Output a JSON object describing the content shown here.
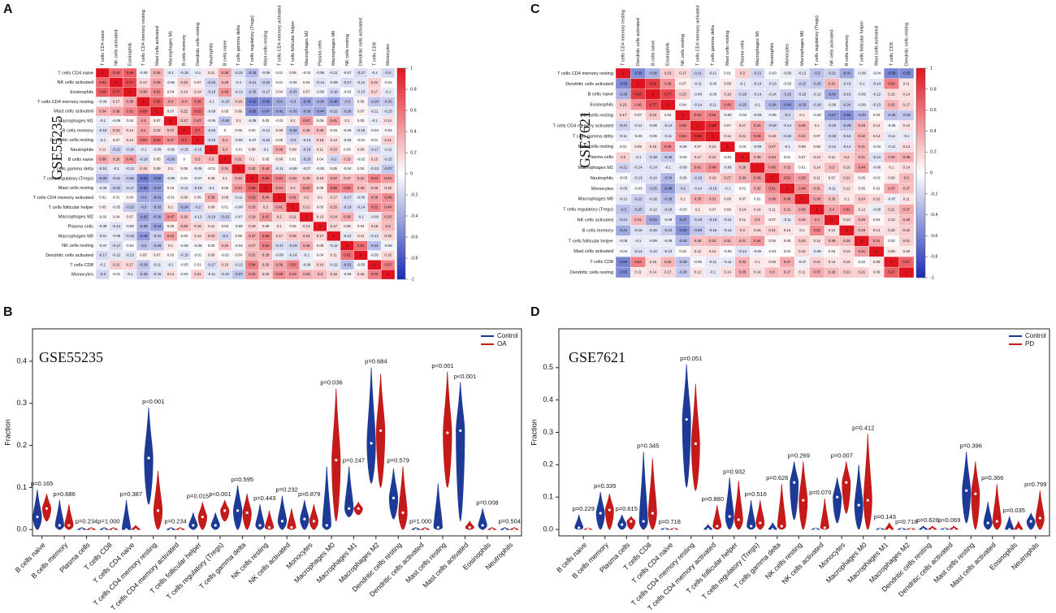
{
  "chart_data": [
    {
      "type": "heatmap",
      "panel_label": "A",
      "dataset": "GSE55235",
      "rows": [
        "T cells CD4 naive",
        "NK cells activated",
        "Eosinophils",
        "T cells CD4 memory resting",
        "Mast cells activated",
        "Macrophages M1",
        "B cells memory",
        "Dendritic cells resting",
        "Neutrophils",
        "B cells naive",
        "T cells gamma delta",
        "T cells regulatory (Tregs)",
        "Mast cells resting",
        "T cells CD4 memory activated",
        "T cells follicular helper",
        "Macrophages M2",
        "Plasma cells",
        "Macrophages M0",
        "NK cells resting",
        "Dendritic cells activated",
        "T cells CD8",
        "Monocytes"
      ],
      "values": [
        [
          1,
          0.63,
          0.69,
          -0.06,
          0.34,
          -0.1,
          -0.15,
          -0.1,
          0.11,
          0.38,
          -0.15,
          -0.33,
          -0.09,
          0.01,
          0.05,
          -0.02,
          -0.08,
          -0.11,
          -0.07,
          -0.17,
          -0.1,
          -0.2
        ],
        [
          1,
          0.77,
          0.17,
          0.39,
          -0.05,
          0.23,
          0.07,
          -0.22,
          0.28,
          -0.1,
          -0.21,
          -0.23,
          0.01,
          -0.05,
          0.04,
          -0.14,
          -0.09,
          -0.17,
          -0.12,
          0.21,
          -0.01
        ],
        [
          1,
          0.38,
          0.51,
          0.04,
          0.14,
          0.14,
          -0.16,
          0.45,
          -0.13,
          -0.25,
          -0.17,
          0.04,
          -0.25,
          0.07,
          -0.06,
          -0.18,
          -0.02,
          -0.13,
          0.17,
          -0.1
        ],
        [
          1,
          0.69,
          0.4,
          0.4,
          0.56,
          -0.1,
          -0.18,
          0.19,
          -0.62,
          -0.55,
          -0.4,
          -0.3,
          -0.45,
          -0.36,
          -0.48,
          -0.3,
          0.05,
          -0.28,
          -0.25
        ],
        [
          1,
          0.07,
          0.22,
          0.63,
          -0.09,
          0.05,
          0.09,
          -0.55,
          -0.47,
          -0.41,
          -0.33,
          -0.36,
          -0.44,
          -0.22,
          -0.29,
          0.07,
          -0.11,
          -0.15
        ],
        [
          1,
          0.27,
          0.47,
          -0.06,
          -0.29,
          0.1,
          -0.09,
          0.03,
          -0.01,
          0.1,
          0.47,
          0.06,
          0.41,
          0.1,
          0.03,
          -0.1,
          0.14
        ],
        [
          1,
          0.7,
          -0.15,
          0,
          0.05,
          0.02,
          -0.12,
          0.09,
          -0.34,
          0.26,
          0.29,
          0.03,
          -0.05,
          -0.15,
          -0.03,
          -0.04
        ],
        [
          1,
          -0.15,
          0.3,
          -0.09,
          -0.07,
          -0.16,
          0.05,
          -0.2,
          -0.13,
          0.18,
          0.13,
          -0.05,
          -0.01,
          0.01,
          0.21
        ],
        [
          1,
          0.3,
          -0.01,
          0.08,
          -0.1,
          0.36,
          0.09,
          -0.19,
          0.11,
          0.23,
          0.03,
          0.09,
          -0.17,
          -0.11
        ],
        [
          1,
          0.31,
          0.1,
          0.05,
          0.09,
          0.01,
          -0.23,
          0.04,
          -0.2,
          0.25,
          -0.02,
          0.15,
          -0.15
        ],
        [
          1,
          0.32,
          0.43,
          -0.11,
          -0.08,
          -0.07,
          -0.05,
          0.05,
          -0.04,
          0.04,
          -0.13,
          -0.27
        ],
        [
          1,
          0.69,
          0.52,
          0.33,
          0.29,
          0.18,
          0.37,
          0.27,
          0.31,
          0.54,
          0.44
        ],
        [
          1,
          0.44,
          0.2,
          0.47,
          0.08,
          0.55,
          0.54,
          0.28,
          0.25,
          0.18
        ],
        [
          1,
          0.41,
          0.2,
          0.1,
          0.17,
          -0.17,
          -0.09,
          0.39,
          0.48
        ],
        [
          1,
          0.21,
          0.05,
          0.25,
          -0.19,
          -0.14,
          0.52,
          0.44
        ],
        [
          1,
          0.13,
          0.24,
          0.36,
          -0.1,
          -0.09,
          0.33
        ],
        [
          1,
          0.17,
          0.08,
          0.04,
          0.16,
          0.3
        ],
        [
          1,
          -0.12,
          0.11,
          -0.12,
          0.19
        ],
        [
          1,
          0.61,
          -0.31,
          -0.06
        ],
        [
          1,
          -0.05,
          0.16
        ],
        [
          1,
          0.53
        ],
        [
          1
        ]
      ],
      "zlim": [
        -1,
        1
      ],
      "zticks": [
        1,
        0.8,
        0.6,
        0.4,
        0.2,
        0,
        -0.2,
        -0.4,
        -0.6,
        -0.8,
        -1
      ],
      "colors": [
        "#1a2db5",
        "#ffffff",
        "#e0141e"
      ]
    },
    {
      "type": "violin",
      "panel_label": "B",
      "dataset": "GSE55235",
      "y_label": "Fraction",
      "categories": [
        "B cells naive",
        "B cells memory",
        "Plasma cells",
        "T cells CD8",
        "T cells CD4 naive",
        "T cells CD4 memory resting",
        "T cells CD4 memory activated",
        "T cells follicular helper",
        "T cells regulatory (Tregs)",
        "T cells gamma delta",
        "NK cells resting",
        "NK cells activated",
        "Monocytes",
        "Macrophages M0",
        "Macrophages M1",
        "Macrophages M2",
        "Dendritic cells resting",
        "Dendritic cells activated",
        "Mast cells resting",
        "Mast cells activated",
        "Eosinophils",
        "Neutrophils"
      ],
      "p_values": [
        "p=0.165",
        "p=0.686",
        "p=0.234",
        "p=1.000",
        "p=0.387",
        "p<0.001",
        "p=0.234",
        "p=0.015",
        "p<0.001",
        "p=0.595",
        "p=0.443",
        "p=0.232",
        "p=0.879",
        "p=0.036",
        "p=0.247",
        "p=0.684",
        "p=0.579",
        "p=1.000",
        "p<0.001",
        "p<0.001",
        "p=0.008",
        "p=0.504"
      ],
      "series": [
        {
          "name": "Control",
          "color": "#1c3a96",
          "values": [
            0.03,
            0.01,
            0,
            0,
            0,
            0.17,
            0,
            0.01,
            0.01,
            0.045,
            0.01,
            0.02,
            0.025,
            0.01,
            0.05,
            0.205,
            0.075,
            0,
            0.005,
            0.235,
            0.01,
            0
          ],
          "mins": [
            0,
            0,
            0,
            0,
            0,
            0.06,
            0,
            0,
            0,
            0,
            0,
            0,
            0,
            0,
            0.03,
            0.11,
            0.025,
            0,
            0,
            0.02,
            0,
            0
          ],
          "maxs": [
            0.095,
            0.07,
            0.005,
            0.005,
            0.07,
            0.29,
            0.005,
            0.04,
            0.04,
            0.105,
            0.06,
            0.08,
            0.07,
            0.15,
            0.15,
            0.385,
            0.145,
            0.005,
            0.11,
            0.35,
            0.05,
            0.005
          ]
        },
        {
          "name": "OA",
          "color": "#c41a1a",
          "values": [
            0.05,
            0.01,
            0,
            0,
            0,
            0.045,
            0,
            0.03,
            0.045,
            0.04,
            0.005,
            0.005,
            0.02,
            0.165,
            0.05,
            0.235,
            0.04,
            0,
            0.23,
            0.005,
            0,
            0
          ],
          "mins": [
            0.02,
            0,
            0,
            0,
            0,
            0,
            0,
            0,
            0.02,
            0,
            0,
            0,
            0,
            0.02,
            0.035,
            0.1,
            0,
            0,
            0.1,
            0,
            0,
            0
          ],
          "maxs": [
            0.085,
            0.06,
            0.005,
            0.005,
            0.01,
            0.14,
            0.005,
            0.065,
            0.07,
            0.085,
            0.045,
            0.05,
            0.06,
            0.335,
            0.065,
            0.37,
            0.15,
            0.005,
            0.375,
            0.02,
            0.005,
            0.005
          ]
        }
      ],
      "ylim": [
        -0.015,
        0.477
      ],
      "yticks": [
        {
          "value": 0,
          "label": "0.0"
        },
        0.1,
        0.2,
        0.3,
        0.4
      ]
    },
    {
      "type": "heatmap",
      "panel_label": "C",
      "dataset": "GSE7621",
      "rows": [
        "T cells CD4 memory resting",
        "Dendritic cells activated",
        "B cells naive",
        "Eosinophils",
        "NK cells resting",
        "T cells CD4 memory activated",
        "T cells gamma delta",
        "Mast cells resting",
        "Plasma cells",
        "Macrophages M1",
        "Neutrophils",
        "Monocytes",
        "Macrophages M0",
        "T cells regulatory (Tregs)",
        "NK cells activated",
        "B cells memory",
        "T cells follicular helper",
        "Mast cells activated",
        "T cells CD8",
        "Dendritic cells resting"
      ],
      "values": [
        [
          1,
          -0.55,
          -0.36,
          0.23,
          0.17,
          -0.21,
          -0.11,
          0.01,
          0.2,
          -0.21,
          -0.03,
          -0.09,
          -0.12,
          -0.3,
          -0.21,
          -0.41,
          -0.08,
          -0.04,
          -0.59,
          -0.55
        ],
        [
          1,
          0.82,
          0.46,
          0.07,
          -0.11,
          -0.06,
          0.09,
          -0.1,
          -0.14,
          -0.13,
          -0.03,
          -0.22,
          -0.25,
          0.31,
          -0.15,
          -0.1,
          -0.14,
          0.54,
          0.11
        ],
        [
          1,
          0.77,
          0.23,
          -0.09,
          -0.06,
          0.16,
          -0.18,
          -0.14,
          -0.14,
          -0.25,
          -0.16,
          -0.12,
          -0.42,
          -0.16,
          -0.09,
          -0.12,
          0.15,
          0.14
        ],
        [
          1,
          0.04,
          -0.14,
          -0.11,
          0.49,
          -0.25,
          -0.1,
          -0.34,
          -0.48,
          -0.33,
          -0.18,
          -0.09,
          -0.24,
          -0.09,
          -0.13,
          0.32,
          0.17
        ],
        [
          1,
          0.53,
          0.54,
          -0.06,
          -0.03,
          -0.09,
          -0.06,
          -0.2,
          0.1,
          -0.03,
          -0.47,
          -0.54,
          -0.33,
          0.03,
          -0.29,
          -0.26
        ],
        [
          1,
          0.88,
          0.07,
          0.17,
          0.41,
          -0.19,
          -0.14,
          0.35,
          0.1,
          -0.19,
          -0.28,
          0.28,
          0.12,
          -0.05,
          0.12
        ],
        [
          1,
          0.12,
          0.21,
          0.49,
          0.18,
          -0.16,
          0.31,
          0.07,
          -0.19,
          -0.16,
          0.32,
          0.14,
          -0.11,
          -0.1
        ],
        [
          1,
          -0.01,
          -0.09,
          0.27,
          -0.1,
          0.09,
          0.06,
          -0.14,
          -0.14,
          0.31,
          -0.03,
          -0.11,
          0.14
        ],
        [
          1,
          0.28,
          0.34,
          0.01,
          0.07,
          0.14,
          0.11,
          0.2,
          0.31,
          -0.14,
          0.33,
          0.35
        ],
        [
          1,
          0.45,
          0.32,
          0.01,
          0.14,
          0.3,
          0.16,
          0.44,
          -0.06,
          0.1,
          0.14
        ],
        [
          1,
          0.51,
          0.39,
          0.11,
          0.07,
          0.21,
          0.05,
          -0.01,
          0.09,
          0.3
        ],
        [
          1,
          0.48,
          0.31,
          -0.11,
          0.12,
          0.05,
          0.02,
          0.37,
          0.27
        ],
        [
          1,
          0.38,
          0.26,
          0.1,
          0.24,
          0.16,
          -0.07,
          0.11
        ],
        [
          1,
          0.4,
          0.51,
          0.12,
          -0.09,
          0.21,
          0.37
        ],
        [
          1,
          0.12,
          0.29,
          0.04,
          0.13,
          0.28
        ],
        [
          1,
          0.28,
          0.14,
          0.15,
          0.22
        ],
        [
          1,
          0.41,
          0.02,
          0.21
        ],
        [
          1,
          0.09,
          0.09
        ],
        [
          1,
          0.67
        ],
        [
          1
        ]
      ],
      "zlim": [
        -1,
        1
      ],
      "zticks": [
        1,
        0.8,
        0.6,
        0.4,
        0.2,
        0,
        -0.2,
        -0.4,
        -0.6,
        -0.8,
        -1
      ],
      "colors": [
        "#1a2db5",
        "#ffffff",
        "#e0141e"
      ]
    },
    {
      "type": "violin",
      "panel_label": "D",
      "dataset": "GSE7621",
      "y_label": "Fraction",
      "categories": [
        "B cells naive",
        "B cells memory",
        "Plasma cells",
        "T cells CD8",
        "T cells CD4 naive",
        "T cells CD4 memory resting",
        "T cells CD4 memory activated",
        "T cells follicular helper",
        "T cells regulatory (Tregs)",
        "T cells gamma delta",
        "NK cells resting",
        "NK cells activated",
        "Monocytes",
        "Macrophages M0",
        "Macrophages M1",
        "Macrophages M2",
        "Dendritic cells resting",
        "Dendritic cells activated",
        "Mast cells resting",
        "Mast cells activated",
        "Eosinophils",
        "Neutrophils"
      ],
      "p_values": [
        "p=0.229",
        "p=0.335",
        "p=0.615",
        "p=0.345",
        "p=0.718",
        "p=0.051",
        "p=0.880",
        "p=0.932",
        "p=0.516",
        "p=0.626",
        "p=0.269",
        "p=0.070",
        "p=0.007",
        "p=0.412",
        "p=0.143",
        "p=0.718",
        "p=0.626",
        "p=0.069",
        "p=0.396",
        "p=0.366",
        "p=0.035",
        "p=0.799"
      ],
      "series": [
        {
          "name": "Control",
          "color": "#1c3a96",
          "values": [
            0.005,
            0.05,
            0.015,
            0.025,
            0,
            0.34,
            0,
            0.04,
            0.01,
            0,
            0.145,
            0,
            0.1,
            0.075,
            0,
            0,
            0,
            0,
            0.12,
            0.02,
            0,
            0.025
          ],
          "mins": [
            0,
            0,
            0,
            0,
            0,
            0.13,
            0,
            0,
            0,
            0,
            0.03,
            0,
            0.02,
            0,
            0,
            0,
            0,
            0,
            0.02,
            0,
            0,
            0
          ],
          "maxs": [
            0.045,
            0.115,
            0.045,
            0.24,
            0.005,
            0.51,
            0.015,
            0.16,
            0.09,
            0.02,
            0.21,
            0.005,
            0.16,
            0.2,
            0.005,
            0.005,
            0.01,
            0.005,
            0.24,
            0.085,
            0.04,
            0.05
          ]
        },
        {
          "name": "PD",
          "color": "#c41a1a",
          "values": [
            0,
            0.06,
            0.025,
            0.05,
            0,
            0.265,
            0.01,
            0.03,
            0.02,
            0.01,
            0.09,
            0.005,
            0.145,
            0.09,
            0,
            0,
            0,
            0,
            0.11,
            0.025,
            0,
            0.035
          ],
          "mins": [
            0,
            0,
            0,
            0,
            0,
            0.12,
            0,
            0,
            0,
            0,
            0,
            0,
            0.05,
            0,
            0,
            0,
            0,
            0,
            0,
            0,
            0,
            0
          ],
          "maxs": [
            0.005,
            0.11,
            0.04,
            0.22,
            0.005,
            0.45,
            0.075,
            0.15,
            0.09,
            0.14,
            0.21,
            0.095,
            0.21,
            0.295,
            0.02,
            0.005,
            0.01,
            0.01,
            0.21,
            0.14,
            0.025,
            0.12
          ]
        }
      ],
      "ylim": [
        -0.02,
        0.62
      ],
      "yticks": [
        {
          "value": 0,
          "label": "0.0"
        },
        0.1,
        0.2,
        0.3,
        0.4,
        0.5
      ]
    }
  ]
}
